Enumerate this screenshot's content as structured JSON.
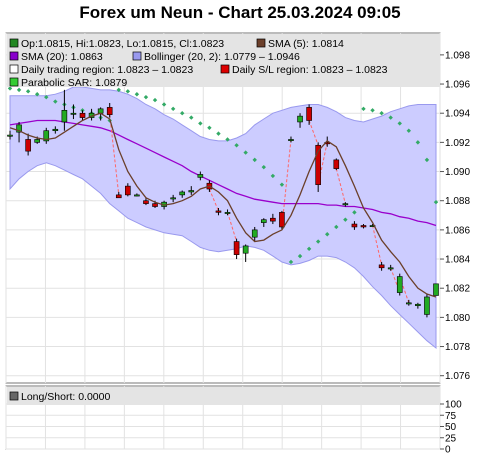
{
  "header": {
    "title": "Forex um Neun - Chart 25.03.2024 09:05"
  },
  "legend": {
    "items": [
      {
        "label": "Op:1.0815, Hi:1.0823, Lo:1.0815, Cl:1.0823",
        "color": "#228822"
      },
      {
        "label": "SMA (5): 1.0814",
        "color": "#6b3f2a"
      },
      {
        "label": "SMA (20): 1.0863",
        "color": "#8800cc"
      },
      {
        "label": "Bollinger (20, 2): 1.0779 – 1.0946",
        "color": "#9999ee"
      },
      {
        "label": "Daily trading region: 1.0823 – 1.0823",
        "color": "#ffffff"
      },
      {
        "label": "Daily S/L region: 1.0823 – 1.0823",
        "color": "#dd0000"
      },
      {
        "label": "Parabolic SAR: 1.0879",
        "color": "#33cc33"
      }
    ]
  },
  "sub_legend": {
    "label": "Long/Short: 0.0000",
    "color": "#666666"
  },
  "colors": {
    "bull": "#22aa22",
    "bear": "#cc0000",
    "sma5": "#6b3f2a",
    "sma20": "#9900cc",
    "band_fill": "#ccccff",
    "band_edge": "#9999ee",
    "sar": "#33aa66",
    "gap": "#ff6666"
  },
  "chart_data": [
    {
      "type": "candlestick",
      "title": "Forex um Neun - Chart 25.03.2024 09:05",
      "ylim": [
        1.0755,
        1.0995
      ],
      "yticks": [
        "1.076",
        "1.078",
        "1.080",
        "1.082",
        "1.084",
        "1.086",
        "1.088",
        "1.090",
        "1.092",
        "1.094",
        "1.096",
        "1.098"
      ],
      "x_grid": 11,
      "grid": true,
      "legend_position": "top",
      "candles": [
        {
          "o": 1.0925,
          "h": 1.0928,
          "l": 1.0922,
          "c": 1.0925
        },
        {
          "o": 1.0927,
          "h": 1.0934,
          "l": 1.092,
          "c": 1.0932
        },
        {
          "o": 1.0922,
          "h": 1.0926,
          "l": 1.0911,
          "c": 1.0914
        },
        {
          "o": 1.092,
          "h": 1.0924,
          "l": 1.0919,
          "c": 1.0922
        },
        {
          "o": 1.0921,
          "h": 1.093,
          "l": 1.0919,
          "c": 1.0928
        },
        {
          "o": 1.0928,
          "h": 1.0931,
          "l": 1.0926,
          "c": 1.0929
        },
        {
          "o": 1.0934,
          "h": 1.0956,
          "l": 1.0928,
          "c": 1.0942
        },
        {
          "o": 1.094,
          "h": 1.0946,
          "l": 1.0936,
          "c": 1.094
        },
        {
          "o": 1.094,
          "h": 1.0942,
          "l": 1.0935,
          "c": 1.0937
        },
        {
          "o": 1.0937,
          "h": 1.0943,
          "l": 1.0935,
          "c": 1.094
        },
        {
          "o": 1.094,
          "h": 1.0944,
          "l": 1.0935,
          "c": 1.0943
        },
        {
          "o": 1.0944,
          "h": 1.0947,
          "l": 1.0937,
          "c": 1.0939
        },
        {
          "o": 1.0884,
          "h": 1.0886,
          "l": 1.0882,
          "c": 1.0882
        },
        {
          "o": 1.089,
          "h": 1.0892,
          "l": 1.0883,
          "c": 1.0884
        },
        {
          "o": 1.0884,
          "h": 1.0885,
          "l": 1.0883,
          "c": 1.0884
        },
        {
          "o": 1.088,
          "h": 1.0882,
          "l": 1.0877,
          "c": 1.0878
        },
        {
          "o": 1.0878,
          "h": 1.088,
          "l": 1.0875,
          "c": 1.0876
        },
        {
          "o": 1.0876,
          "h": 1.088,
          "l": 1.0874,
          "c": 1.0879
        },
        {
          "o": 1.0882,
          "h": 1.0884,
          "l": 1.0879,
          "c": 1.0882
        },
        {
          "o": 1.0884,
          "h": 1.0887,
          "l": 1.0882,
          "c": 1.0886
        },
        {
          "o": 1.0886,
          "h": 1.089,
          "l": 1.0884,
          "c": 1.0887
        },
        {
          "o": 1.0896,
          "h": 1.09,
          "l": 1.0894,
          "c": 1.0898
        },
        {
          "o": 1.0892,
          "h": 1.0894,
          "l": 1.0886,
          "c": 1.0888
        },
        {
          "o": 1.0873,
          "h": 1.0875,
          "l": 1.087,
          "c": 1.0872
        },
        {
          "o": 1.0872,
          "h": 1.0874,
          "l": 1.087,
          "c": 1.0872
        },
        {
          "o": 1.0852,
          "h": 1.0854,
          "l": 1.084,
          "c": 1.0843
        },
        {
          "o": 1.0844,
          "h": 1.085,
          "l": 1.0838,
          "c": 1.0849
        },
        {
          "o": 1.0855,
          "h": 1.0862,
          "l": 1.0852,
          "c": 1.086
        },
        {
          "o": 1.0865,
          "h": 1.0868,
          "l": 1.0862,
          "c": 1.0867
        },
        {
          "o": 1.0868,
          "h": 1.0871,
          "l": 1.0864,
          "c": 1.0866
        },
        {
          "o": 1.0872,
          "h": 1.0873,
          "l": 1.086,
          "c": 1.0862
        },
        {
          "o": 1.0922,
          "h": 1.0924,
          "l": 1.092,
          "c": 1.0922
        },
        {
          "o": 1.0934,
          "h": 1.094,
          "l": 1.093,
          "c": 1.0938
        },
        {
          "o": 1.0944,
          "h": 1.0946,
          "l": 1.0932,
          "c": 1.0935
        },
        {
          "o": 1.0918,
          "h": 1.092,
          "l": 1.0886,
          "c": 1.0891
        },
        {
          "o": 1.092,
          "h": 1.0924,
          "l": 1.0917,
          "c": 1.0919
        },
        {
          "o": 1.0908,
          "h": 1.0909,
          "l": 1.0901,
          "c": 1.0902
        },
        {
          "o": 1.0878,
          "h": 1.0879,
          "l": 1.0876,
          "c": 1.0878
        },
        {
          "o": 1.0864,
          "h": 1.0866,
          "l": 1.086,
          "c": 1.0862
        },
        {
          "o": 1.0863,
          "h": 1.0864,
          "l": 1.0861,
          "c": 1.0862
        },
        {
          "o": 1.0863,
          "h": 1.0864,
          "l": 1.0862,
          "c": 1.0863
        },
        {
          "o": 1.0836,
          "h": 1.0838,
          "l": 1.0832,
          "c": 1.0834
        },
        {
          "o": 1.0834,
          "h": 1.0836,
          "l": 1.0832,
          "c": 1.0834
        },
        {
          "o": 1.0817,
          "h": 1.083,
          "l": 1.0815,
          "c": 1.0828
        },
        {
          "o": 1.081,
          "h": 1.0812,
          "l": 1.0808,
          "c": 1.081
        },
        {
          "o": 1.0808,
          "h": 1.081,
          "l": 1.0806,
          "c": 1.0809
        },
        {
          "o": 1.0802,
          "h": 1.0816,
          "l": 1.08,
          "c": 1.0814
        },
        {
          "o": 1.0815,
          "h": 1.0823,
          "l": 1.0815,
          "c": 1.0823
        }
      ],
      "series": [
        {
          "name": "SMA (5)",
          "values": [
            1.093,
            1.0928,
            1.0925,
            1.0923,
            1.0922,
            1.0923,
            1.0927,
            1.0931,
            1.0935,
            1.0938,
            1.094,
            1.0936,
            1.0915,
            1.09,
            1.089,
            1.0882,
            1.0879,
            1.0877,
            1.0878,
            1.088,
            1.0883,
            1.0888,
            1.089,
            1.0886,
            1.088,
            1.0868,
            1.0858,
            1.0852,
            1.0853,
            1.0857,
            1.086,
            1.087,
            1.0884,
            1.09,
            1.0914,
            1.0921,
            1.0917,
            1.0904,
            1.089,
            1.0875,
            1.0865,
            1.0853,
            1.0845,
            1.0838,
            1.0828,
            1.082,
            1.0816,
            1.0814
          ]
        },
        {
          "name": "SMA (20)",
          "values": [
            1.0932,
            1.0933,
            1.0934,
            1.0935,
            1.0935,
            1.0935,
            1.0934,
            1.0933,
            1.0932,
            1.0931,
            1.093,
            1.0928,
            1.0925,
            1.0922,
            1.0919,
            1.0916,
            1.0913,
            1.091,
            1.0907,
            1.0904,
            1.09,
            1.0897,
            1.0894,
            1.0891,
            1.0888,
            1.0885,
            1.0883,
            1.0881,
            1.088,
            1.0879,
            1.0878,
            1.0878,
            1.0878,
            1.0878,
            1.0878,
            1.0877,
            1.0877,
            1.0876,
            1.0876,
            1.0875,
            1.0874,
            1.0872,
            1.0871,
            1.0869,
            1.0868,
            1.0866,
            1.0865,
            1.0863
          ]
        },
        {
          "name": "Bollinger upper",
          "values": [
            1.0952,
            1.0952,
            1.0952,
            1.0952,
            1.0952,
            1.0953,
            1.0955,
            1.0958,
            1.0958,
            1.0957,
            1.0956,
            1.0956,
            1.0955,
            1.0953,
            1.095,
            1.0946,
            1.0943,
            1.0939,
            1.0936,
            1.0932,
            1.0928,
            1.0924,
            1.0922,
            1.0921,
            1.0921,
            1.0923,
            1.0926,
            1.0932,
            1.0936,
            1.094,
            1.0942,
            1.0944,
            1.0945,
            1.0946,
            1.0946,
            1.0944,
            1.0941,
            1.0937,
            1.0935,
            1.0934,
            1.0936,
            1.0938,
            1.0941,
            1.0943,
            1.0945,
            1.0946,
            1.0946,
            1.0946
          ]
        },
        {
          "name": "Bollinger lower",
          "values": [
            1.0888,
            1.0895,
            1.09,
            1.0904,
            1.0906,
            1.0904,
            1.0901,
            1.0898,
            1.0895,
            1.089,
            1.0885,
            1.0878,
            1.0873,
            1.0868,
            1.0865,
            1.0862,
            1.086,
            1.0858,
            1.0857,
            1.0856,
            1.0852,
            1.0848,
            1.0846,
            1.0845,
            1.0846,
            1.0847,
            1.0849,
            1.0848,
            1.0846,
            1.0842,
            1.0838,
            1.0836,
            1.0837,
            1.0839,
            1.0842,
            1.0842,
            1.0841,
            1.0838,
            1.0834,
            1.0828,
            1.0821,
            1.0815,
            1.0808,
            1.0802,
            1.0796,
            1.079,
            1.0784,
            1.0779
          ]
        },
        {
          "name": "Parabolic SAR",
          "values": [
            1.0957,
            1.0956,
            1.0955,
            1.0953,
            1.0951,
            1.0948,
            1.0946,
            1.0944,
            1.0942,
            1.094,
            1.0937,
            1.0935,
            1.0956,
            1.0955,
            1.0953,
            1.0951,
            1.0949,
            1.0946,
            1.0943,
            1.094,
            1.0937,
            1.0933,
            1.093,
            1.0926,
            1.0922,
            1.0918,
            1.0913,
            1.0908,
            1.0903,
            1.0897,
            1.0891,
            1.0838,
            1.0842,
            1.0847,
            1.0852,
            1.0857,
            1.0862,
            1.0867,
            1.0872,
            1.0943,
            1.0942,
            1.094,
            1.0937,
            1.0933,
            1.0928,
            1.092,
            1.0908,
            1.0879
          ]
        }
      ]
    },
    {
      "type": "line",
      "title": "",
      "ylim": [
        0,
        100
      ],
      "yticks": [
        "0",
        "25",
        "50",
        "75",
        "100"
      ],
      "series": [
        {
          "name": "Long/Short",
          "values": []
        }
      ]
    }
  ]
}
